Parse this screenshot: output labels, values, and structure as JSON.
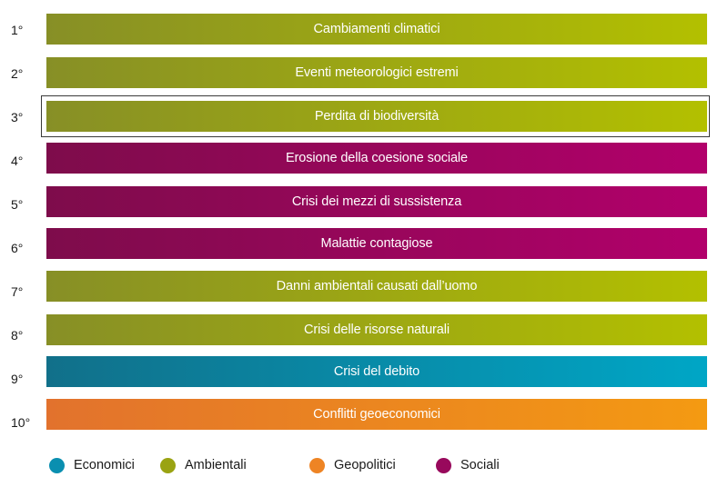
{
  "chart_data": {
    "type": "table",
    "title": "",
    "xlabel": "",
    "ylabel": "",
    "highlighted_rank": "3°",
    "rows": [
      {
        "rank": "1°",
        "label": "Cambiamenti climatici",
        "category": "ambientali"
      },
      {
        "rank": "2°",
        "label": "Eventi meteorologici estremi",
        "category": "ambientali"
      },
      {
        "rank": "3°",
        "label": "Perdita di biodiversità",
        "category": "ambientali"
      },
      {
        "rank": "4°",
        "label": "Erosione della coesione sociale",
        "category": "sociali"
      },
      {
        "rank": "5°",
        "label": "Crisi dei mezzi di sussistenza",
        "category": "sociali"
      },
      {
        "rank": "6°",
        "label": "Malattie contagiose",
        "category": "sociali"
      },
      {
        "rank": "7°",
        "label": "Danni ambientali causati dall’uomo",
        "category": "ambientali"
      },
      {
        "rank": "8°",
        "label": "Crisi delle risorse naturali",
        "category": "ambientali"
      },
      {
        "rank": "9°",
        "label": "Crisi del debito",
        "category": "economici"
      },
      {
        "rank": "10°",
        "label": "Conflitti geoeconomici",
        "category": "geopolitici"
      }
    ],
    "legend": {
      "placement": "bottom",
      "items": [
        {
          "key": "economici",
          "label": "Economici",
          "color": "#0a8fb0"
        },
        {
          "key": "ambientali",
          "label": "Ambientali",
          "color": "#9aa312"
        },
        {
          "key": "geopolitici",
          "label": "Geopolitici",
          "color": "#ee8424"
        },
        {
          "key": "sociali",
          "label": "Sociali",
          "color": "#98095c"
        }
      ]
    }
  }
}
